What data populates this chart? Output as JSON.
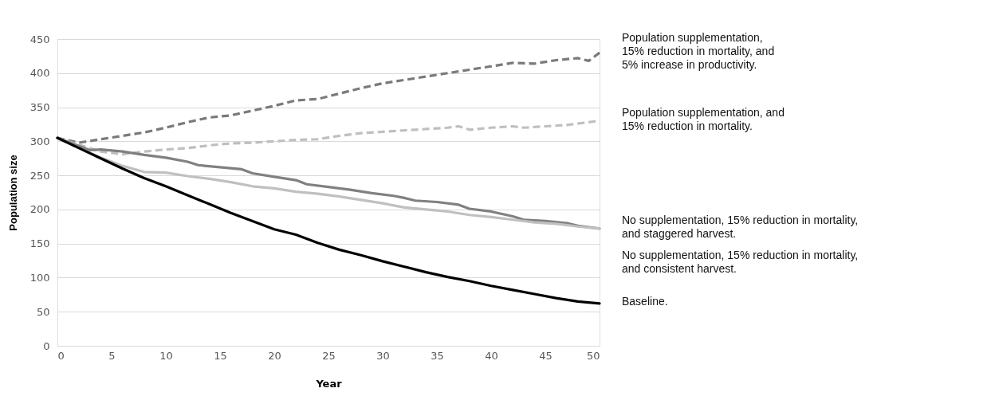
{
  "chart_data": {
    "type": "line",
    "xlabel": "Year",
    "ylabel": "Population size",
    "xlim": [
      0,
      50
    ],
    "xticks": [
      0,
      5,
      10,
      15,
      20,
      25,
      30,
      35,
      40,
      45,
      50
    ],
    "ylim": [
      0,
      450
    ],
    "yticks": [
      0,
      50,
      100,
      150,
      200,
      250,
      300,
      350,
      400,
      450
    ],
    "grid": "y",
    "marker": "none",
    "series": [
      {
        "name": "Population supplementation,\n15% reduction in mortality, and\n5% increase in productivity.",
        "color": "#7a7a7a",
        "line_style": "dashed",
        "x": [
          0,
          2,
          4,
          6,
          8,
          10,
          12,
          14,
          16,
          18,
          20,
          22,
          24,
          26,
          28,
          30,
          32,
          34,
          36,
          38,
          40,
          42,
          44,
          46,
          48,
          49,
          50
        ],
        "values": [
          305,
          298,
          303,
          308,
          313,
          320,
          328,
          335,
          338,
          345,
          352,
          360,
          362,
          370,
          378,
          385,
          390,
          395,
          400,
          405,
          410,
          415,
          414,
          419,
          422,
          418,
          430
        ]
      },
      {
        "name": "Population supplementation, and\n15% reduction in mortality.",
        "color": "#bfbfbf",
        "line_style": "dashed",
        "x": [
          0,
          2,
          4,
          6,
          8,
          10,
          12,
          14,
          16,
          18,
          20,
          22,
          24,
          26,
          28,
          30,
          32,
          34,
          36,
          37,
          38,
          40,
          42,
          43,
          45,
          47,
          50
        ],
        "values": [
          305,
          295,
          285,
          281,
          285,
          288,
          290,
          294,
          297,
          298,
          300,
          302,
          303,
          308,
          312,
          314,
          316,
          318,
          320,
          322,
          317,
          320,
          322,
          320,
          322,
          324,
          330
        ]
      },
      {
        "name": "No supplementation, 15% reduction in mortality,\nand staggered harvest.",
        "color": "#808080",
        "line_style": "solid",
        "x": [
          0,
          2,
          3,
          4,
          6,
          8,
          10,
          12,
          13,
          15,
          17,
          18,
          20,
          22,
          23,
          25,
          27,
          29,
          31,
          32,
          33,
          35,
          37,
          38,
          40,
          42,
          43,
          45,
          47,
          48,
          50
        ],
        "values": [
          305,
          293,
          287,
          288,
          285,
          280,
          276,
          270,
          265,
          262,
          259,
          253,
          248,
          243,
          237,
          233,
          229,
          224,
          220,
          217,
          213,
          211,
          207,
          201,
          197,
          190,
          185,
          183,
          180,
          176,
          172
        ]
      },
      {
        "name": "No supplementation, 15% reduction in mortality,\nand consistent harvest.",
        "color": "#c0c0c0",
        "line_style": "solid",
        "x": [
          0,
          2,
          4,
          6,
          8,
          10,
          12,
          14,
          16,
          18,
          20,
          22,
          24,
          26,
          28,
          30,
          32,
          34,
          36,
          38,
          40,
          42,
          44,
          46,
          48,
          50
        ],
        "values": [
          305,
          290,
          276,
          264,
          255,
          254,
          249,
          245,
          240,
          234,
          231,
          226,
          223,
          219,
          214,
          209,
          203,
          200,
          197,
          192,
          189,
          185,
          181,
          179,
          175,
          172
        ]
      },
      {
        "name": "Baseline.",
        "color": "#000000",
        "line_style": "solid",
        "x": [
          0,
          2,
          4,
          6,
          8,
          10,
          12,
          14,
          16,
          18,
          20,
          22,
          24,
          26,
          28,
          30,
          32,
          34,
          36,
          38,
          40,
          42,
          44,
          46,
          48,
          50
        ],
        "values": [
          305,
          290,
          275,
          260,
          246,
          234,
          221,
          208,
          195,
          183,
          171,
          163,
          151,
          141,
          133,
          124,
          116,
          108,
          101,
          95,
          88,
          82,
          76,
          70,
          65,
          62
        ]
      }
    ]
  }
}
